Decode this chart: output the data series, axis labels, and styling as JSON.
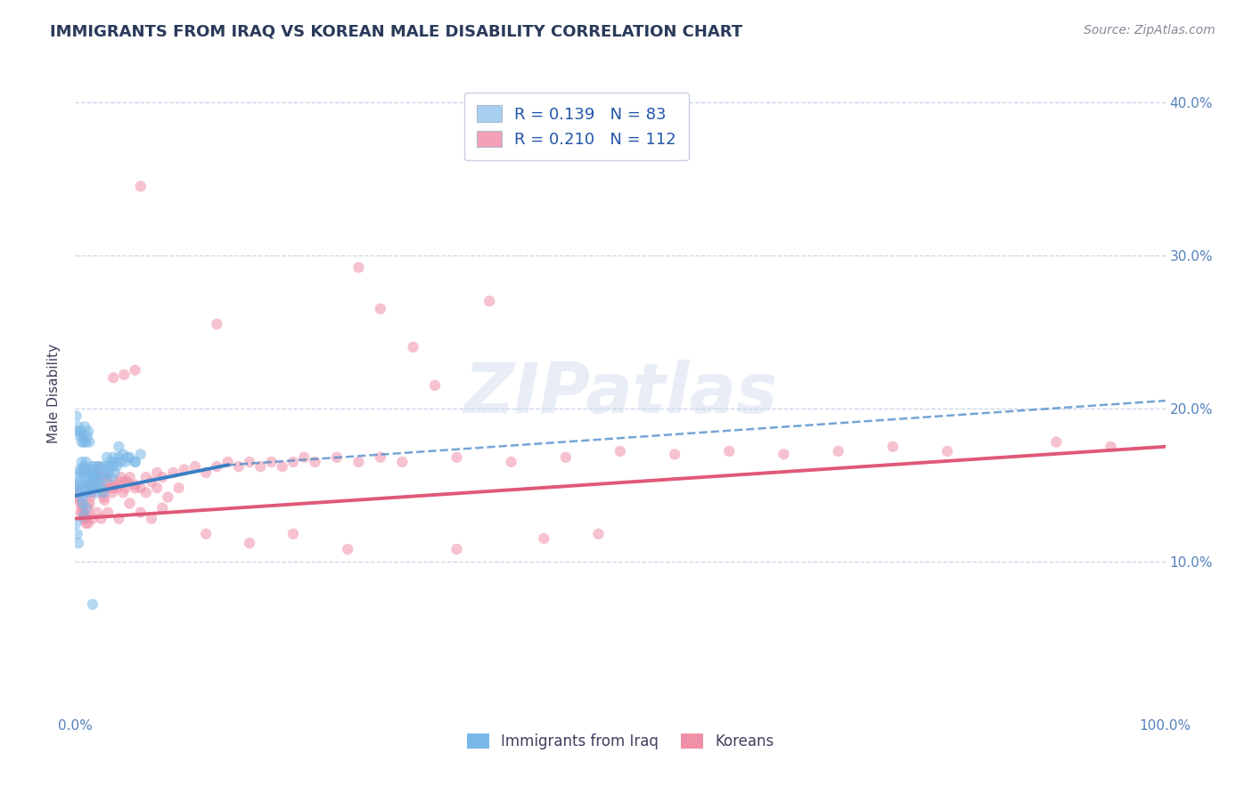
{
  "title": "IMMIGRANTS FROM IRAQ VS KOREAN MALE DISABILITY CORRELATION CHART",
  "source": "Source: ZipAtlas.com",
  "ylabel": "Male Disability",
  "xlim": [
    0.0,
    1.0
  ],
  "ylim": [
    0.0,
    0.42
  ],
  "ytick_positions": [
    0.1,
    0.2,
    0.3,
    0.4
  ],
  "ytick_labels": [
    "10.0%",
    "20.0%",
    "30.0%",
    "40.0%"
  ],
  "legend_entries": [
    {
      "label": "R = 0.139   N = 83",
      "facecolor": "#a8d0f0",
      "textcolor": "#3366cc"
    },
    {
      "label": "R = 0.210   N = 112",
      "facecolor": "#f4a0b8",
      "textcolor": "#3366cc"
    }
  ],
  "legend_n_labels": [
    "N = 83",
    "N = 112"
  ],
  "watermark": "ZIPatlas",
  "series1_color": "#7ab8e8",
  "series2_color": "#f090a8",
  "trendline1_color": "#3a7fc4",
  "trendline2_color": "#e05878",
  "background_color": "#ffffff",
  "grid_color": "#c8d4e8",
  "title_color": "#2a3a5a",
  "axis_label_color": "#5580bb",
  "series1_x": [
    0.002,
    0.003,
    0.003,
    0.004,
    0.004,
    0.005,
    0.005,
    0.006,
    0.006,
    0.007,
    0.007,
    0.008,
    0.008,
    0.009,
    0.009,
    0.01,
    0.01,
    0.011,
    0.011,
    0.012,
    0.012,
    0.013,
    0.013,
    0.014,
    0.014,
    0.015,
    0.015,
    0.016,
    0.016,
    0.017,
    0.017,
    0.018,
    0.018,
    0.019,
    0.019,
    0.02,
    0.02,
    0.021,
    0.022,
    0.023,
    0.024,
    0.025,
    0.026,
    0.027,
    0.028,
    0.029,
    0.03,
    0.031,
    0.032,
    0.033,
    0.034,
    0.035,
    0.036,
    0.037,
    0.038,
    0.04,
    0.042,
    0.044,
    0.046,
    0.048,
    0.05,
    0.055,
    0.06,
    0.001,
    0.002,
    0.003,
    0.004,
    0.005,
    0.006,
    0.007,
    0.008,
    0.009,
    0.01,
    0.011,
    0.012,
    0.013,
    0.001,
    0.002,
    0.003,
    0.04,
    0.055,
    0.016,
    0.01,
    0.008
  ],
  "series1_y": [
    0.15,
    0.155,
    0.148,
    0.152,
    0.16,
    0.145,
    0.158,
    0.142,
    0.165,
    0.138,
    0.16,
    0.148,
    0.162,
    0.145,
    0.155,
    0.15,
    0.165,
    0.148,
    0.158,
    0.145,
    0.155,
    0.15,
    0.16,
    0.148,
    0.158,
    0.155,
    0.162,
    0.15,
    0.158,
    0.155,
    0.162,
    0.148,
    0.158,
    0.145,
    0.155,
    0.15,
    0.162,
    0.148,
    0.155,
    0.162,
    0.15,
    0.158,
    0.145,
    0.162,
    0.155,
    0.168,
    0.158,
    0.162,
    0.165,
    0.155,
    0.162,
    0.168,
    0.158,
    0.165,
    0.162,
    0.168,
    0.165,
    0.17,
    0.165,
    0.168,
    0.168,
    0.165,
    0.17,
    0.195,
    0.185,
    0.188,
    0.182,
    0.185,
    0.178,
    0.182,
    0.178,
    0.188,
    0.178,
    0.182,
    0.185,
    0.178,
    0.125,
    0.118,
    0.112,
    0.175,
    0.165,
    0.072,
    0.135,
    0.13
  ],
  "series2_x": [
    0.001,
    0.002,
    0.003,
    0.004,
    0.005,
    0.006,
    0.007,
    0.008,
    0.009,
    0.01,
    0.011,
    0.012,
    0.013,
    0.014,
    0.015,
    0.016,
    0.017,
    0.018,
    0.019,
    0.02,
    0.021,
    0.022,
    0.023,
    0.024,
    0.025,
    0.026,
    0.027,
    0.028,
    0.029,
    0.03,
    0.032,
    0.034,
    0.036,
    0.038,
    0.04,
    0.042,
    0.044,
    0.046,
    0.048,
    0.05,
    0.055,
    0.06,
    0.065,
    0.07,
    0.075,
    0.08,
    0.09,
    0.1,
    0.11,
    0.12,
    0.13,
    0.14,
    0.15,
    0.16,
    0.17,
    0.18,
    0.19,
    0.2,
    0.21,
    0.22,
    0.24,
    0.26,
    0.28,
    0.3,
    0.35,
    0.4,
    0.45,
    0.5,
    0.55,
    0.6,
    0.65,
    0.7,
    0.75,
    0.8,
    0.9,
    0.95,
    0.035,
    0.045,
    0.055,
    0.065,
    0.075,
    0.085,
    0.095,
    0.005,
    0.008,
    0.012,
    0.016,
    0.02,
    0.024,
    0.03,
    0.04,
    0.05,
    0.06,
    0.07,
    0.08,
    0.12,
    0.16,
    0.2,
    0.25,
    0.35,
    0.035,
    0.045,
    0.055,
    0.33,
    0.43,
    0.13,
    0.06,
    0.28,
    0.38,
    0.48,
    0.26,
    0.31
  ],
  "series2_y": [
    0.148,
    0.145,
    0.142,
    0.14,
    0.138,
    0.135,
    0.132,
    0.13,
    0.128,
    0.125,
    0.13,
    0.135,
    0.138,
    0.142,
    0.145,
    0.148,
    0.15,
    0.152,
    0.155,
    0.158,
    0.16,
    0.162,
    0.155,
    0.148,
    0.145,
    0.142,
    0.14,
    0.148,
    0.152,
    0.155,
    0.148,
    0.145,
    0.15,
    0.148,
    0.152,
    0.155,
    0.145,
    0.148,
    0.152,
    0.155,
    0.15,
    0.148,
    0.155,
    0.152,
    0.158,
    0.155,
    0.158,
    0.16,
    0.162,
    0.158,
    0.162,
    0.165,
    0.162,
    0.165,
    0.162,
    0.165,
    0.162,
    0.165,
    0.168,
    0.165,
    0.168,
    0.165,
    0.168,
    0.165,
    0.168,
    0.165,
    0.168,
    0.172,
    0.17,
    0.172,
    0.17,
    0.172,
    0.175,
    0.172,
    0.178,
    0.175,
    0.148,
    0.152,
    0.148,
    0.145,
    0.148,
    0.142,
    0.148,
    0.132,
    0.128,
    0.125,
    0.128,
    0.132,
    0.128,
    0.132,
    0.128,
    0.138,
    0.132,
    0.128,
    0.135,
    0.118,
    0.112,
    0.118,
    0.108,
    0.108,
    0.22,
    0.222,
    0.225,
    0.215,
    0.115,
    0.255,
    0.345,
    0.265,
    0.27,
    0.118,
    0.292,
    0.24
  ],
  "trendline1_x_solid_start": 0.0,
  "trendline1_x_solid_end": 0.14,
  "trendline1_y_solid_start": 0.143,
  "trendline1_y_solid_end": 0.163,
  "trendline1_x_dash_end": 1.0,
  "trendline1_y_dash_end": 0.205,
  "trendline2_x_start": 0.0,
  "trendline2_x_end": 1.0,
  "trendline2_y_start": 0.128,
  "trendline2_y_end": 0.175
}
